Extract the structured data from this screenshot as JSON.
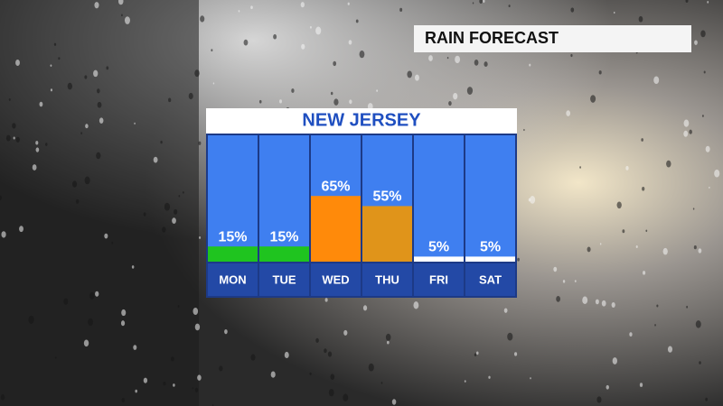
{
  "chart_data": {
    "type": "bar",
    "title": "NEW JERSEY",
    "subtitle": "RAIN FORECAST",
    "categories": [
      "MON",
      "TUE",
      "WED",
      "THU",
      "FRI",
      "SAT"
    ],
    "values": [
      15,
      15,
      65,
      55,
      5,
      5
    ],
    "value_labels": [
      "15%",
      "15%",
      "65%",
      "55%",
      "5%",
      "5%"
    ],
    "colors": [
      "#1fc41f",
      "#1fc41f",
      "#ff8a0a",
      "#e0941a",
      "#ffffff",
      "#ffffff"
    ]
  }
}
